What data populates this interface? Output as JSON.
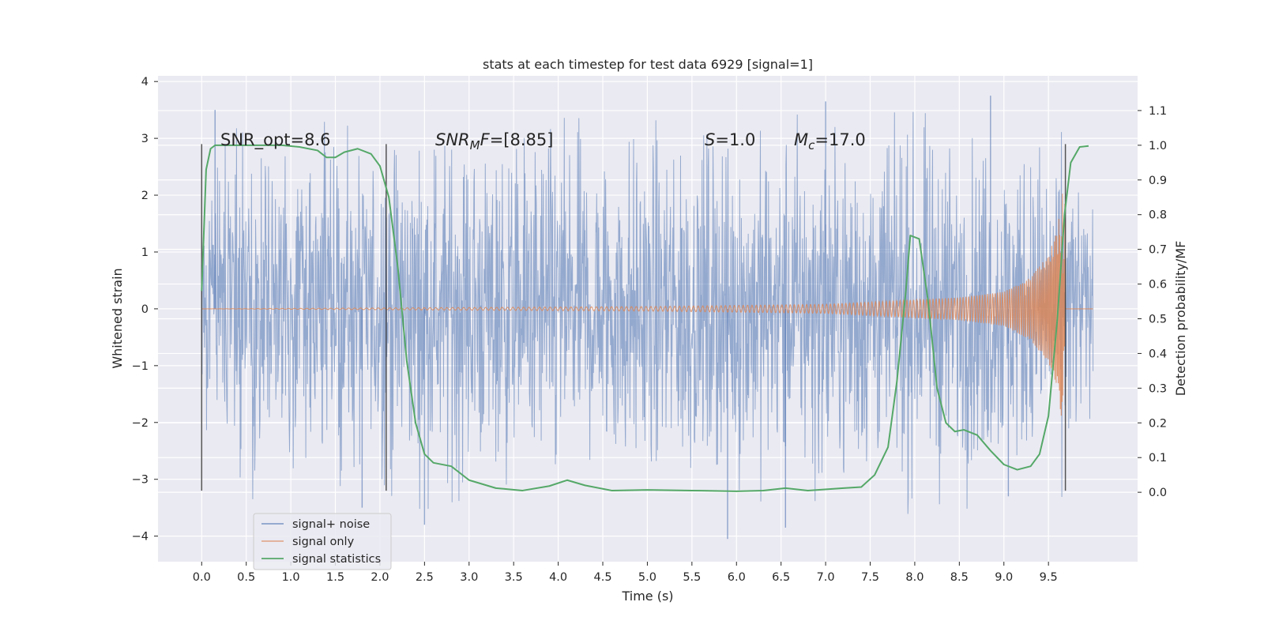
{
  "chart_data": {
    "type": "line",
    "title": "stats at each timestep for test data 6929 [signal=1]",
    "xlabel": "Time (s)",
    "ylabel": "Whitened strain",
    "ylabel_right": "Detection probability/MF",
    "xlim": [
      -0.49,
      10.5
    ],
    "ylim": [
      -4.45,
      4.1
    ],
    "ylim_right": [
      -0.2,
      1.2
    ],
    "x_ticks": [
      0.0,
      0.5,
      1.0,
      1.5,
      2.0,
      2.5,
      3.0,
      3.5,
      4.0,
      4.5,
      5.0,
      5.5,
      6.0,
      6.5,
      7.0,
      7.5,
      8.0,
      8.5,
      9.0,
      9.5
    ],
    "x_tick_labels": [
      "0.0",
      "0.5",
      "1.0",
      "1.5",
      "2.0",
      "2.5",
      "3.0",
      "3.5",
      "4.0",
      "4.5",
      "5.0",
      "5.5",
      "6.0",
      "6.5",
      "7.0",
      "7.5",
      "8.0",
      "8.5",
      "9.0",
      "9.5"
    ],
    "y_ticks": [
      -4,
      -3,
      -2,
      -1,
      0,
      1,
      2,
      3,
      4
    ],
    "y_tick_labels": [
      "−4",
      "−3",
      "−2",
      "−1",
      "0",
      "1",
      "2",
      "3",
      "4"
    ],
    "y_right_ticks": [
      0.0,
      0.1,
      0.2,
      0.3,
      0.4,
      0.5,
      0.6,
      0.7,
      0.8,
      0.9,
      1.0,
      1.1
    ],
    "y_right_tick_labels": [
      "0.0",
      "0.1",
      "0.2",
      "0.3",
      "0.4",
      "0.5",
      "0.6",
      "0.7",
      "0.8",
      "0.9",
      "1.0",
      "1.1"
    ],
    "grid": true,
    "legend_position": "lower-left",
    "annotations": {
      "snr_opt": "SNR_opt=8.6",
      "snr_mf_name": "SNR",
      "snr_mf_sub": "M",
      "snr_mf_tail": "F",
      "snr_mf_value": "=[8.85]",
      "s_name": "S",
      "s_value": "=1.0",
      "mc_name": "M",
      "mc_sub": "c",
      "mc_value": "=17.0"
    },
    "vertical_markers": [
      0.0,
      2.07,
      9.69
    ],
    "series": [
      {
        "name": "signal+ noise",
        "color": "#4c72b0",
        "style": "noisy band",
        "x_range": [
          0.0,
          10.0
        ],
        "amplitude_envelope": [
          [
            0.0,
            2.0
          ],
          [
            0.15,
            3.0
          ],
          [
            2.0,
            3.2
          ],
          [
            5.0,
            3.2
          ],
          [
            8.0,
            3.3
          ],
          [
            9.7,
            3.0
          ],
          [
            10.0,
            1.8
          ]
        ],
        "notable_spikes": [
          [
            0.15,
            3.5
          ],
          [
            1.8,
            -3.5
          ],
          [
            2.5,
            -3.8
          ],
          [
            5.9,
            -4.05
          ],
          [
            6.55,
            -3.85
          ],
          [
            7.0,
            3.65
          ],
          [
            8.85,
            3.75
          ],
          [
            9.05,
            -3.3
          ]
        ]
      },
      {
        "name": "signal only",
        "color": "#dd8452",
        "style": "chirp",
        "x_range": [
          0.0,
          10.0
        ],
        "merger_time": 9.69,
        "amplitude_envelope": [
          [
            0.0,
            0.0
          ],
          [
            5.0,
            0.04
          ],
          [
            7.0,
            0.08
          ],
          [
            8.5,
            0.2
          ],
          [
            9.0,
            0.3
          ],
          [
            9.3,
            0.55
          ],
          [
            9.5,
            0.95
          ],
          [
            9.6,
            1.4
          ],
          [
            9.68,
            2.3
          ],
          [
            9.7,
            0.0
          ],
          [
            10.0,
            0.0
          ]
        ]
      },
      {
        "name": "signal statistics",
        "color": "#55a868",
        "axis": "right",
        "x": [
          0.0,
          0.05,
          0.1,
          0.15,
          0.2,
          0.3,
          0.5,
          0.7,
          0.9,
          1.1,
          1.3,
          1.4,
          1.5,
          1.6,
          1.75,
          1.9,
          2.0,
          2.1,
          2.2,
          2.3,
          2.4,
          2.5,
          2.6,
          2.8,
          3.0,
          3.3,
          3.6,
          3.9,
          4.1,
          4.3,
          4.6,
          5.0,
          5.5,
          6.0,
          6.3,
          6.55,
          6.8,
          7.2,
          7.4,
          7.55,
          7.7,
          7.8,
          7.9,
          7.95,
          8.05,
          8.15,
          8.25,
          8.35,
          8.45,
          8.55,
          8.7,
          8.85,
          9.0,
          9.15,
          9.3,
          9.4,
          9.5,
          9.6,
          9.68,
          9.75,
          9.85,
          9.95
        ],
        "y": [
          0.58,
          0.93,
          0.99,
          1.0,
          1.0,
          1.0,
          1.0,
          1.0,
          1.0,
          0.995,
          0.985,
          0.965,
          0.965,
          0.98,
          0.99,
          0.975,
          0.94,
          0.85,
          0.65,
          0.38,
          0.2,
          0.11,
          0.085,
          0.075,
          0.035,
          0.012,
          0.005,
          0.018,
          0.035,
          0.02,
          0.005,
          0.007,
          0.005,
          0.003,
          0.005,
          0.012,
          0.005,
          0.012,
          0.015,
          0.05,
          0.13,
          0.32,
          0.58,
          0.74,
          0.73,
          0.55,
          0.3,
          0.2,
          0.175,
          0.18,
          0.165,
          0.12,
          0.08,
          0.065,
          0.075,
          0.11,
          0.22,
          0.5,
          0.8,
          0.95,
          0.995,
          0.998
        ]
      }
    ]
  }
}
